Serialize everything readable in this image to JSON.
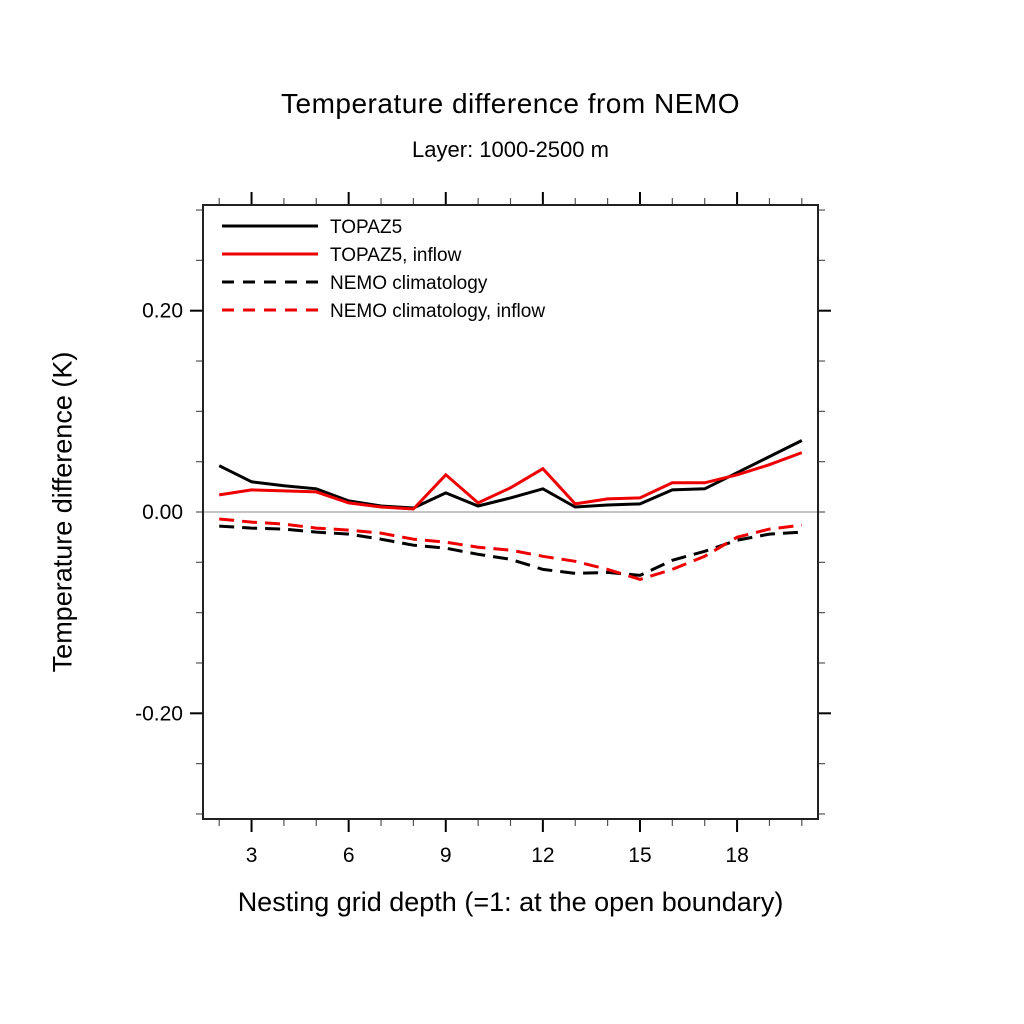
{
  "figure": {
    "title": "Temperature difference from NEMO",
    "subtitle": "Layer: 1000-2500 m",
    "xlabel": "Nesting grid depth (=1: at the open boundary)",
    "ylabel": "Temperature difference (K)"
  },
  "colors": {
    "black_series": "#000000",
    "red_series": "#ee0000",
    "zero_line": "#b0b0b0",
    "frame": "#222222",
    "minor_tick": "#555555"
  },
  "chart_data": {
    "type": "line",
    "title": "Temperature difference from NEMO",
    "subtitle": "Layer: 1000-2500 m",
    "xlabel": "Nesting grid depth (=1: at the open boundary)",
    "ylabel": "Temperature difference (K)",
    "x": [
      2,
      3,
      4,
      5,
      6,
      7,
      8,
      9,
      10,
      11,
      12,
      13,
      14,
      15,
      16,
      17,
      18,
      19,
      20
    ],
    "series": [
      {
        "name": "TOPAZ5",
        "color": "#000000",
        "style": "solid",
        "values": [
          0.046,
          0.03,
          0.026,
          0.023,
          0.011,
          0.006,
          0.004,
          0.019,
          0.006,
          0.014,
          0.023,
          0.005,
          0.007,
          0.008,
          0.022,
          0.023,
          0.039,
          0.055,
          0.071
        ]
      },
      {
        "name": "TOPAZ5, inflow",
        "color": "#ee0000",
        "style": "solid",
        "values": [
          0.017,
          0.022,
          0.021,
          0.02,
          0.009,
          0.005,
          0.003,
          0.037,
          0.009,
          0.024,
          0.043,
          0.008,
          0.013,
          0.014,
          0.029,
          0.029,
          0.037,
          0.047,
          0.059
        ]
      },
      {
        "name": "NEMO climatology",
        "color": "#000000",
        "style": "dashed",
        "values": [
          -0.014,
          -0.016,
          -0.017,
          -0.02,
          -0.022,
          -0.027,
          -0.033,
          -0.036,
          -0.042,
          -0.047,
          -0.057,
          -0.061,
          -0.06,
          -0.063,
          -0.048,
          -0.039,
          -0.028,
          -0.022,
          -0.02
        ]
      },
      {
        "name": "NEMO climatology, inflow",
        "color": "#ee0000",
        "style": "dashed",
        "values": [
          -0.007,
          -0.01,
          -0.012,
          -0.016,
          -0.018,
          -0.021,
          -0.027,
          -0.03,
          -0.035,
          -0.038,
          -0.044,
          -0.049,
          -0.057,
          -0.067,
          -0.057,
          -0.044,
          -0.025,
          -0.017,
          -0.013
        ]
      }
    ],
    "xlim": [
      1.5,
      20.5
    ],
    "ylim": [
      -0.305,
      0.305
    ],
    "xticks_major": [
      3,
      6,
      9,
      12,
      15,
      18
    ],
    "xtick_labels": [
      "3",
      "6",
      "9",
      "12",
      "15",
      "18"
    ],
    "xticks_minor_step": 1,
    "yticks_major": [
      -0.2,
      0.0,
      0.2
    ],
    "ytick_labels": [
      "-0.20",
      "0.00",
      "0.20"
    ],
    "yticks_minor_step": 0.05,
    "zero_line": true,
    "grid": false,
    "ticks": "outward-all-sides",
    "legend_position": "top-left-inside"
  }
}
